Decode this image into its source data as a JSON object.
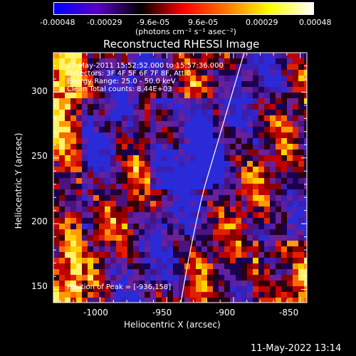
{
  "colorbar": {
    "colors": [
      "#0000ff",
      "#5a00c8",
      "#000000",
      "#ff0000",
      "#ff7800",
      "#ffff00",
      "#ffffff"
    ],
    "tick_labels": [
      "-0.00048",
      "-0.00029",
      "-9.6e-05",
      "9.6e-05",
      "0.00029",
      "0.00048"
    ],
    "units_label": "(photons cm⁻² s⁻¹ asec⁻²)"
  },
  "plot": {
    "title": "Reconstructed RHESSI Image",
    "xlabel": "Heliocentric X (arcsec)",
    "ylabel": "Heliocentric Y (arcsec)",
    "x_ticks": [
      "-1000",
      "-950",
      "-900",
      "-850"
    ],
    "y_ticks": [
      "300",
      "250",
      "200",
      "150"
    ],
    "xlim": [
      -1035,
      -845
    ],
    "ylim": [
      140,
      330
    ],
    "x_tick_values": [
      -1000,
      -950,
      -900,
      -850
    ],
    "y_tick_values": [
      300,
      250,
      200,
      150
    ],
    "info_lines": [
      "27-May-2011 15:52:52.000 to 15:57:36.000",
      "Detectors: 3F 4F 5F 6F 7F 8F, Att 0",
      "Energy Range: 25.0 - 50.0 keV",
      "Clean     Total counts: 8.44E+03"
    ],
    "peak_label": "Position of Peak = [-936,158]"
  },
  "footer": {
    "timestamp": "11-May-2022 13:14"
  }
}
